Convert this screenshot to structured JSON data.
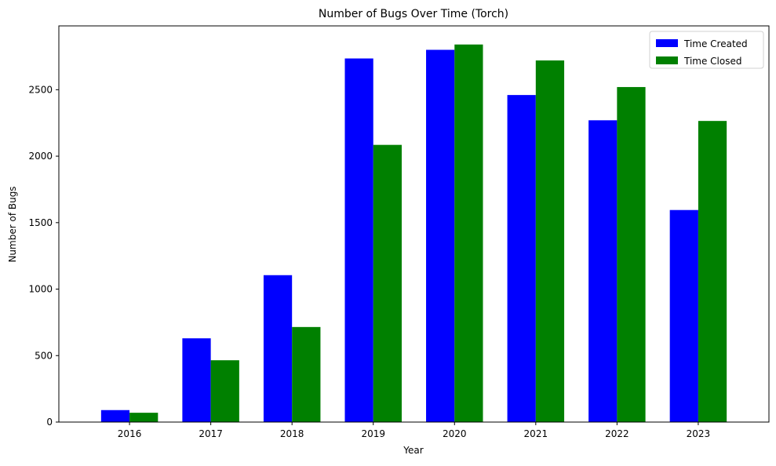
{
  "chart_data": {
    "type": "bar",
    "title": "Number of Bugs Over Time (Torch)",
    "xlabel": "Year",
    "ylabel": "Number of Bugs",
    "categories": [
      "2016",
      "2017",
      "2018",
      "2019",
      "2020",
      "2021",
      "2022",
      "2023"
    ],
    "series": [
      {
        "name": "Time Created",
        "color": "#0000ff",
        "values": [
          90,
          630,
          1105,
          2735,
          2800,
          2460,
          2270,
          1595
        ]
      },
      {
        "name": "Time Closed",
        "color": "#008000",
        "values": [
          70,
          465,
          715,
          2085,
          2840,
          2720,
          2520,
          2265
        ]
      }
    ],
    "yticks": [
      0,
      500,
      1000,
      1500,
      2000,
      2500
    ],
    "ylim": [
      0,
      2980
    ],
    "grid": false,
    "legend_position": "top-right"
  }
}
